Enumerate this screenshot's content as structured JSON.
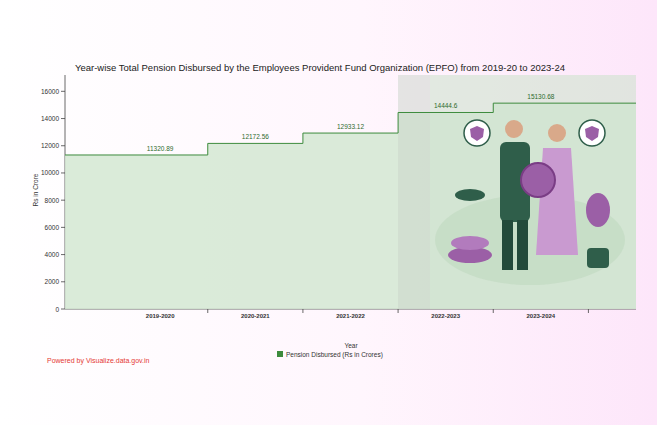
{
  "chart_data": {
    "type": "step_area",
    "title": "Year-wise Total Pension Disbursed by the Employees Provident Fund Organization (EPFO) from 2019-20 to 2023-24",
    "x_label": "Year",
    "y_label": "Rs in Crore",
    "categories": [
      "2019-2020",
      "2020-2021",
      "2021-2022",
      "2022-2023",
      "2023-2024"
    ],
    "series": [
      {
        "name": "Pension Disbursed (Rs in Crores)",
        "color": "#3d8b3d",
        "values": [
          11320.89,
          12172.56,
          12933.12,
          14444.6,
          15130.68
        ]
      }
    ],
    "ylim": [
      0,
      17200
    ],
    "yticks": [
      0,
      2000,
      4000,
      6000,
      8000,
      10000,
      12000,
      14000,
      16000
    ],
    "data_labels": true,
    "grid": false,
    "legend": "bottom",
    "source": "Powered by Visualize.data.gov.in"
  }
}
